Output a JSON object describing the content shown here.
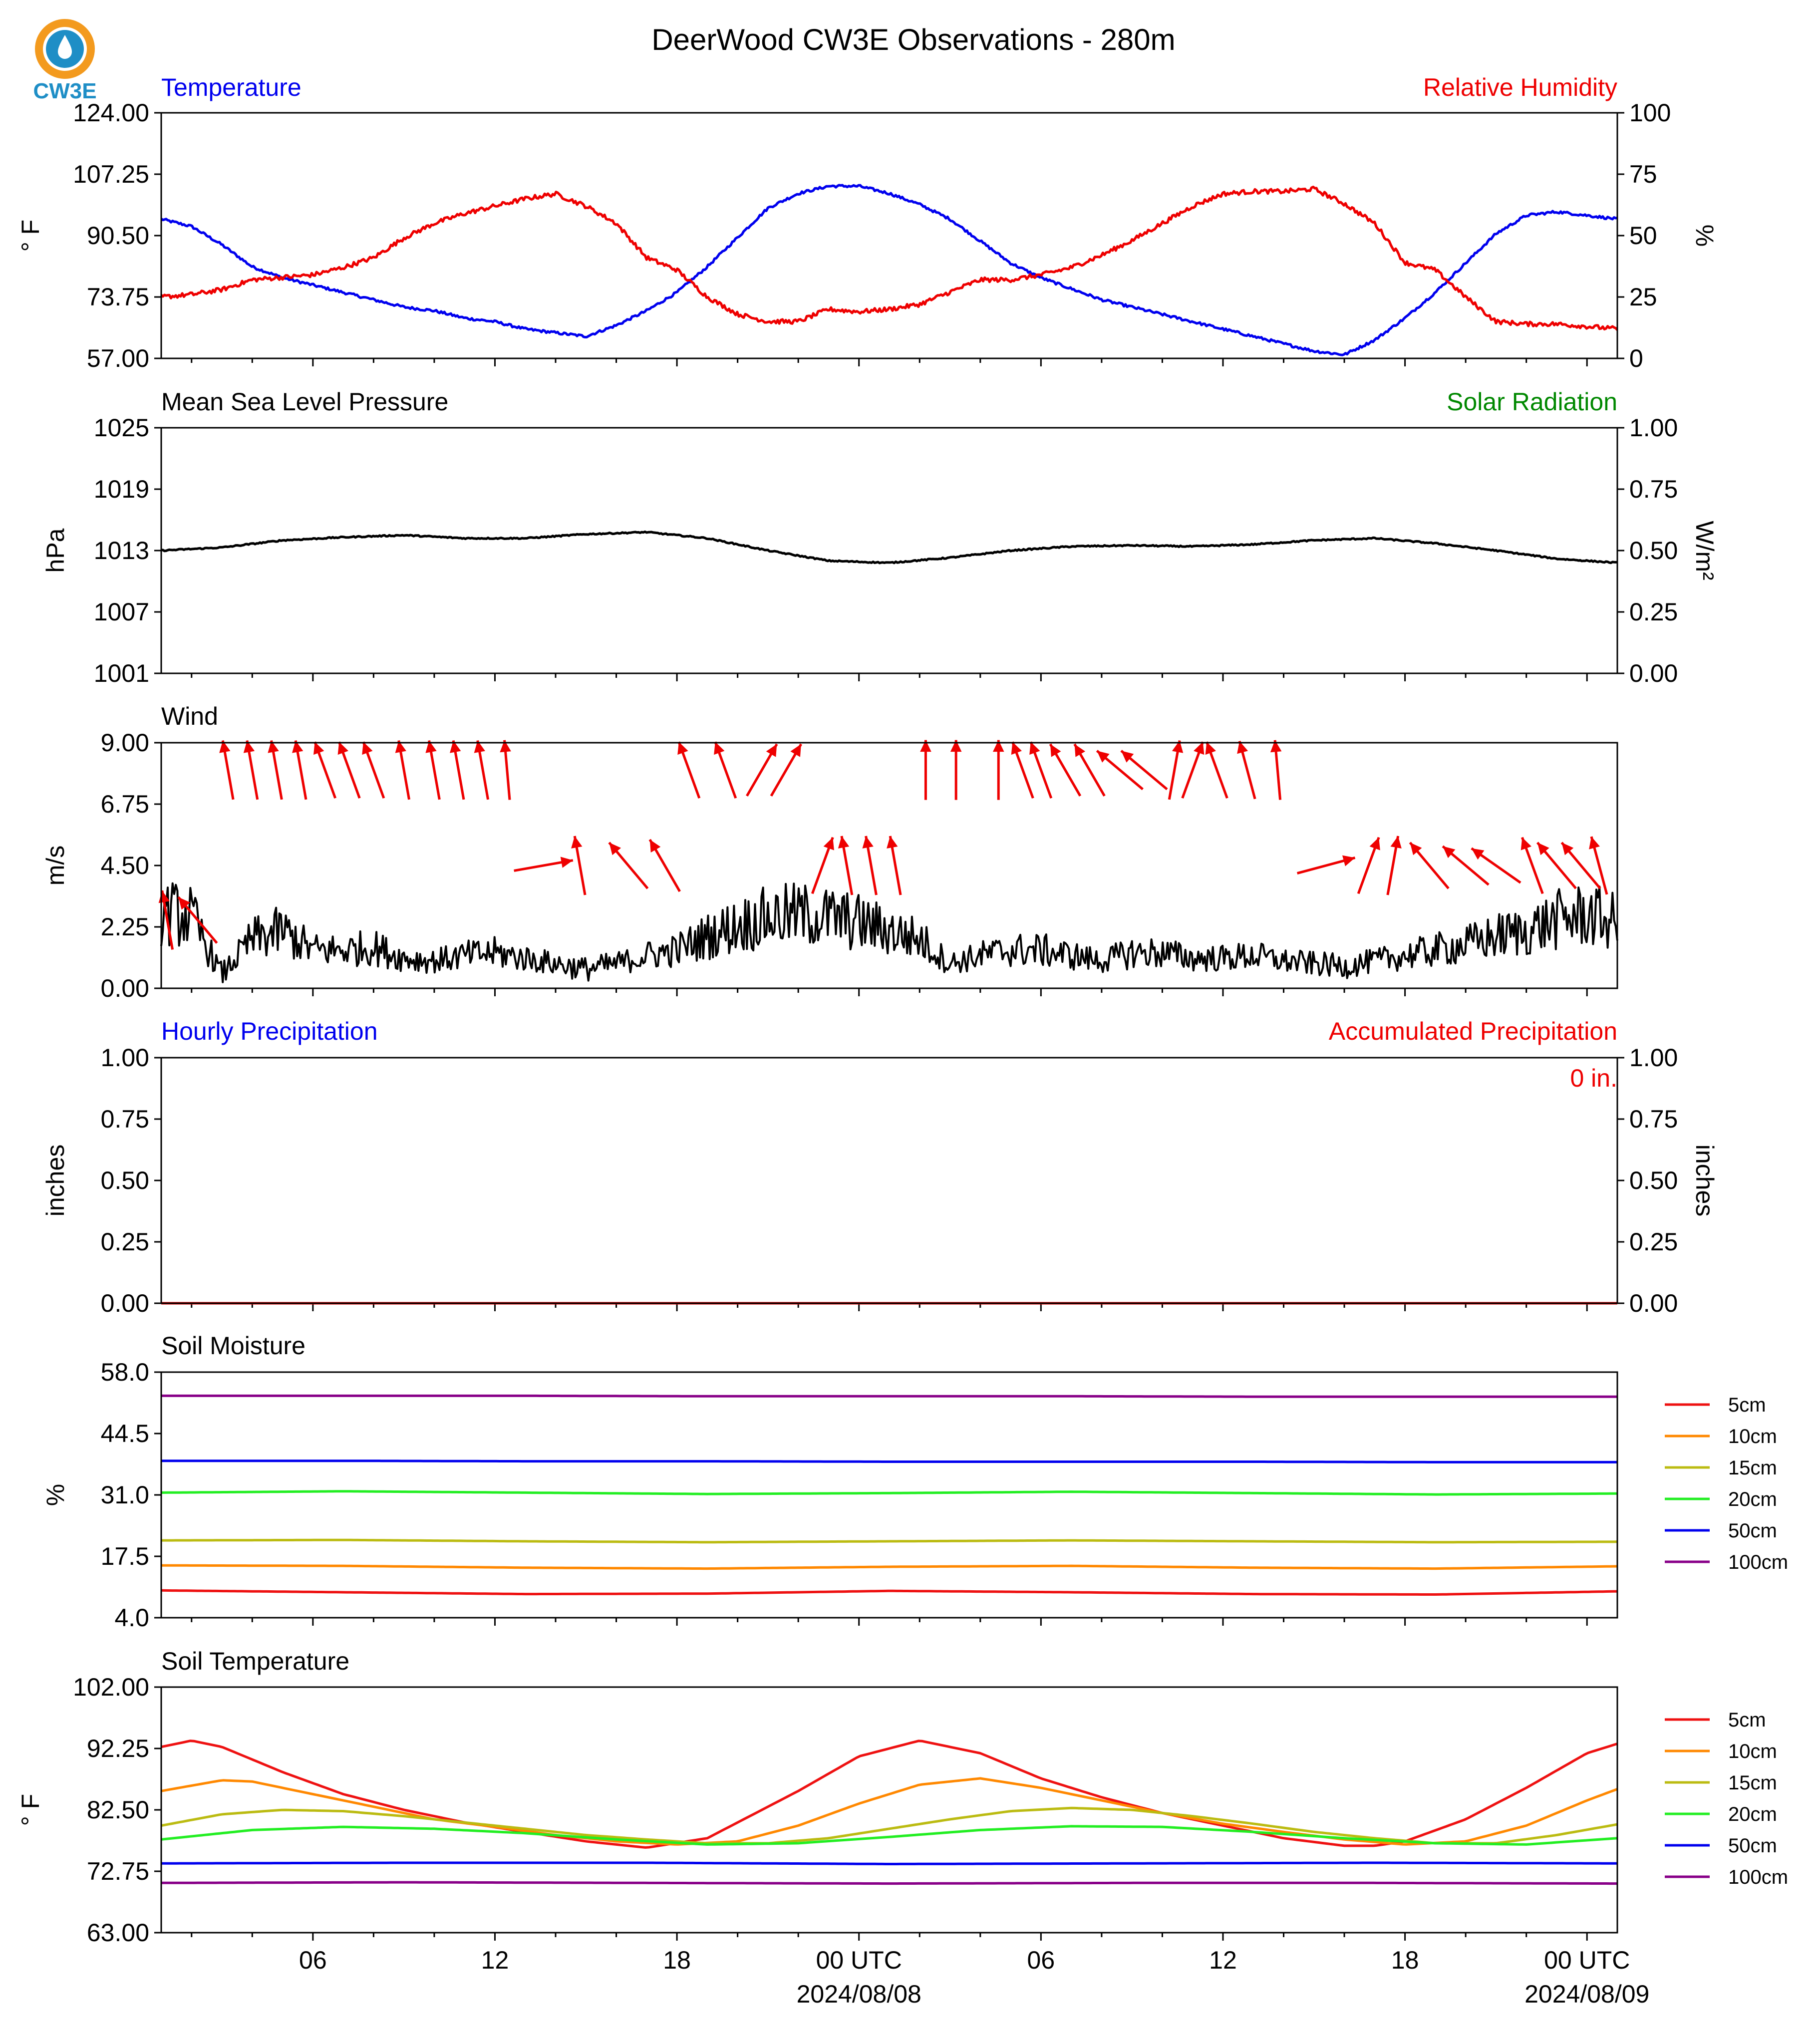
{
  "figure": {
    "title": "DeerWood CW3E Observations - 280m",
    "logo_text": "CW3E",
    "x_axis": {
      "tick_labels": [
        "06",
        "12",
        "18",
        "00 UTC",
        "06",
        "12",
        "18",
        "00 UTC"
      ],
      "tick_hours": [
        6,
        12,
        18,
        24,
        30,
        36,
        42,
        48
      ],
      "date_labels": [
        {
          "text": "2024/08/08",
          "hour": 24
        },
        {
          "text": "2024/08/09",
          "hour": 48
        }
      ],
      "range_hours": [
        1,
        49
      ]
    }
  },
  "colors": {
    "blue": "#0000ee",
    "red": "#ee0000",
    "green": "#008800",
    "black": "#000000",
    "logo_orange": "#f39a1e",
    "logo_blue": "#1e8ec6"
  },
  "chart_data": [
    {
      "id": "temp-rh",
      "type": "line",
      "title_left": "Temperature",
      "title_right": "Relative Humidity",
      "ylabel": "° F",
      "ylabel_right": "%",
      "ylim": [
        57,
        124
      ],
      "ylim_right": [
        0,
        100
      ],
      "yticks": [
        "57.00",
        "73.75",
        "90.50",
        "107.25",
        "124.00"
      ],
      "yticks_right": [
        "0",
        "25",
        "50",
        "75",
        "100"
      ],
      "series": [
        {
          "name": "Temperature",
          "axis": "left",
          "color": "#0000ee",
          "x": [
            1,
            2,
            3,
            4,
            5,
            6,
            7,
            8,
            9,
            10,
            11,
            12,
            13,
            14,
            15,
            16,
            17,
            18,
            19,
            20,
            21,
            22,
            23,
            24,
            25,
            26,
            27,
            28,
            29,
            30,
            31,
            32,
            33,
            34,
            35,
            36,
            37,
            38,
            39,
            40,
            41,
            42,
            43,
            44,
            45,
            46,
            47,
            48,
            49
          ],
          "values": [
            95,
            93,
            88,
            82,
            79,
            77,
            75,
            73,
            71,
            70,
            68,
            67,
            65,
            64,
            63,
            66,
            70,
            75,
            82,
            90,
            98,
            102,
            104,
            104,
            102,
            99,
            95,
            89,
            83,
            79,
            76,
            73,
            71,
            69,
            67,
            65,
            63,
            61,
            59,
            58,
            62,
            68,
            75,
            83,
            91,
            96,
            97,
            96,
            95
          ]
        },
        {
          "name": "Relative Humidity",
          "axis": "right",
          "color": "#ee0000",
          "x": [
            1,
            2,
            3,
            4,
            5,
            6,
            7,
            8,
            9,
            10,
            11,
            12,
            13,
            14,
            15,
            16,
            17,
            18,
            19,
            20,
            21,
            22,
            23,
            24,
            25,
            26,
            27,
            28,
            29,
            30,
            31,
            32,
            33,
            34,
            35,
            36,
            37,
            38,
            39,
            40,
            41,
            42,
            43,
            44,
            45,
            46,
            47,
            48,
            49
          ],
          "values": [
            25,
            26,
            28,
            32,
            33,
            34,
            37,
            41,
            49,
            55,
            59,
            62,
            65,
            67,
            62,
            55,
            41,
            36,
            25,
            18,
            15,
            15,
            20,
            19,
            20,
            22,
            27,
            32,
            32,
            34,
            37,
            42,
            48,
            55,
            62,
            67,
            68,
            68,
            69,
            63,
            55,
            39,
            36,
            25,
            15,
            14,
            14,
            13,
            12
          ]
        }
      ]
    },
    {
      "id": "pressure",
      "type": "line",
      "title_left": "Mean Sea Level Pressure",
      "title_right": "Solar Radiation",
      "ylabel": "hPa",
      "ylabel_right": "W/m²",
      "ylim": [
        1001,
        1025
      ],
      "ylim_right": [
        0,
        1
      ],
      "yticks": [
        "1001",
        "1007",
        "1013",
        "1019",
        "1025"
      ],
      "yticks_right": [
        "0.00",
        "0.25",
        "0.50",
        "0.75",
        "1.00"
      ],
      "series": [
        {
          "name": "Pressure",
          "axis": "left",
          "color": "#000000",
          "x": [
            1,
            3,
            5,
            7,
            9,
            11,
            13,
            15,
            17,
            19,
            21,
            23,
            25,
            27,
            29,
            31,
            33,
            35,
            37,
            39,
            41,
            43,
            45,
            47,
            49
          ],
          "values": [
            1013.0,
            1013.3,
            1014.0,
            1014.3,
            1014.5,
            1014.2,
            1014.2,
            1014.6,
            1014.8,
            1014.2,
            1013.0,
            1012.0,
            1011.8,
            1012.3,
            1013.0,
            1013.4,
            1013.5,
            1013.4,
            1013.6,
            1014.0,
            1014.2,
            1013.7,
            1013.0,
            1012.2,
            1011.8
          ]
        }
      ]
    },
    {
      "id": "wind",
      "type": "line",
      "title_left": "Wind",
      "ylabel": "m/s",
      "ylim": [
        0,
        9
      ],
      "yticks": [
        "0.00",
        "2.25",
        "4.50",
        "6.75",
        "9.00"
      ],
      "series": [
        {
          "name": "Wind Speed",
          "axis": "left",
          "color": "#000000",
          "x": [
            1,
            2,
            3,
            4,
            5,
            6,
            7,
            8,
            9,
            10,
            11,
            12,
            13,
            14,
            15,
            16,
            17,
            18,
            19,
            20,
            21,
            22,
            23,
            24,
            25,
            26,
            27,
            28,
            29,
            30,
            31,
            32,
            33,
            34,
            35,
            36,
            37,
            38,
            39,
            40,
            41,
            42,
            43,
            44,
            45,
            46,
            47,
            48,
            49
          ],
          "values": [
            2.8,
            2.6,
            0.5,
            1.8,
            2.1,
            1.4,
            1.4,
            1.5,
            1.1,
            1.0,
            1.2,
            1.3,
            1.1,
            0.9,
            0.7,
            0.9,
            1.2,
            1.4,
            1.9,
            2.3,
            2.6,
            2.7,
            2.6,
            2.4,
            2.1,
            1.8,
            0.9,
            1.2,
            1.4,
            1.4,
            1.2,
            1.0,
            1.3,
            1.3,
            1.1,
            1.1,
            1.2,
            1.0,
            0.9,
            0.8,
            1.0,
            1.2,
            1.4,
            1.6,
            1.9,
            2.1,
            2.5,
            2.7,
            2.4
          ]
        }
      ],
      "barbs": {
        "color": "#ee0000",
        "hours": [
          1.2,
          2.2,
          3.2,
          4.0,
          4.8,
          5.6,
          6.4,
          7.2,
          8.0,
          9.0,
          10.0,
          10.8,
          11.6,
          12.4,
          13.6,
          14.8,
          16.4,
          17.6,
          18.4,
          19.6,
          20.8,
          21.6,
          22.8,
          23.6,
          24.4,
          25.2,
          26.2,
          27.2,
          28.6,
          29.4,
          30.0,
          30.8,
          31.6,
          32.6,
          33.4,
          34.4,
          35.0,
          35.8,
          36.8,
          37.8,
          39.4,
          40.8,
          41.6,
          42.8,
          44.0,
          45.0,
          46.2,
          47.0,
          47.8,
          48.4
        ],
        "dir_deg": [
          170,
          140,
          170,
          170,
          170,
          170,
          160,
          160,
          160,
          170,
          170,
          170,
          170,
          175,
          260,
          170,
          140,
          150,
          160,
          160,
          210,
          210,
          200,
          170,
          170,
          170,
          180,
          180,
          180,
          160,
          160,
          150,
          150,
          130,
          130,
          190,
          200,
          160,
          165,
          175,
          255,
          200,
          190,
          140,
          130,
          125,
          160,
          140,
          140,
          165
        ],
        "speed": [
          2.5,
          2.5,
          8,
          8,
          8,
          8,
          8,
          8,
          8,
          8,
          8,
          8,
          8,
          8,
          4.5,
          4.5,
          4.5,
          4.5,
          8,
          8,
          8,
          8,
          4.5,
          4.5,
          4.5,
          4.5,
          8,
          8,
          8,
          8,
          8,
          8,
          8,
          8,
          8,
          8,
          8,
          8,
          8,
          8,
          4.5,
          4.5,
          4.5,
          4.5,
          4.5,
          4.5,
          4.5,
          4.5,
          4.5,
          4.5
        ]
      }
    },
    {
      "id": "precip",
      "type": "line",
      "title_left": "Hourly Precipitation",
      "title_right": "Accumulated Precipitation",
      "annotation": "0 in.",
      "ylabel": "inches",
      "ylabel_right": "inches",
      "ylim": [
        0,
        1
      ],
      "ylim_right": [
        0,
        1
      ],
      "yticks": [
        "0.00",
        "0.25",
        "0.50",
        "0.75",
        "1.00"
      ],
      "yticks_right": [
        "0.00",
        "0.25",
        "0.50",
        "0.75",
        "1.00"
      ],
      "series": [
        {
          "name": "Accumulated Precipitation",
          "axis": "right",
          "color": "#ee0000",
          "x": [
            1,
            49
          ],
          "values": [
            0,
            0
          ]
        }
      ]
    },
    {
      "id": "soil-moisture",
      "type": "line",
      "title_left": "Soil Moisture",
      "ylabel": "%",
      "ylim": [
        4,
        58
      ],
      "yticks": [
        "4.0",
        "17.5",
        "31.0",
        "44.5",
        "58.0"
      ],
      "legend": [
        "5cm",
        "10cm",
        "15cm",
        "20cm",
        "50cm",
        "100cm"
      ],
      "series": [
        {
          "name": "5cm",
          "color": "#ee1111",
          "x": [
            1,
            7,
            13,
            19,
            25,
            31,
            37,
            43,
            49
          ],
          "values": [
            10.0,
            9.6,
            9.2,
            9.3,
            9.9,
            9.6,
            9.2,
            9.1,
            9.8
          ]
        },
        {
          "name": "10cm",
          "color": "#ff8800",
          "x": [
            1,
            7,
            13,
            19,
            25,
            31,
            37,
            43,
            49
          ],
          "values": [
            15.5,
            15.4,
            15.0,
            14.8,
            15.2,
            15.4,
            15.0,
            14.8,
            15.3
          ]
        },
        {
          "name": "15cm",
          "color": "#bbbb11",
          "x": [
            1,
            7,
            13,
            19,
            25,
            31,
            37,
            43,
            49
          ],
          "values": [
            21.0,
            21.1,
            20.8,
            20.6,
            20.8,
            21.0,
            20.8,
            20.6,
            20.7
          ]
        },
        {
          "name": "20cm",
          "color": "#22ee22",
          "x": [
            1,
            7,
            13,
            19,
            25,
            31,
            37,
            43,
            49
          ],
          "values": [
            31.5,
            31.8,
            31.5,
            31.2,
            31.4,
            31.7,
            31.4,
            31.1,
            31.3
          ]
        },
        {
          "name": "50cm",
          "color": "#0000ee",
          "x": [
            1,
            7,
            13,
            19,
            25,
            31,
            37,
            43,
            49
          ],
          "values": [
            38.5,
            38.5,
            38.4,
            38.4,
            38.3,
            38.3,
            38.3,
            38.2,
            38.2
          ]
        },
        {
          "name": "100cm",
          "color": "#880088",
          "x": [
            1,
            7,
            13,
            19,
            25,
            31,
            37,
            43,
            49
          ],
          "values": [
            52.8,
            52.8,
            52.8,
            52.7,
            52.7,
            52.7,
            52.6,
            52.6,
            52.6
          ]
        }
      ]
    },
    {
      "id": "soil-temperature",
      "type": "line",
      "title_left": "Soil Temperature",
      "ylabel": "° F",
      "ylim": [
        63,
        102
      ],
      "yticks": [
        "63.00",
        "72.75",
        "82.50",
        "92.25",
        "102.00"
      ],
      "legend": [
        "5cm",
        "10cm",
        "15cm",
        "20cm",
        "50cm",
        "100cm"
      ],
      "series": [
        {
          "name": "5cm",
          "color": "#ee1111",
          "x": [
            1,
            2,
            3,
            5,
            7,
            9,
            11,
            13,
            15,
            17,
            19,
            21,
            22,
            24,
            26,
            28,
            30,
            32,
            34,
            36,
            38,
            40,
            41,
            42,
            44,
            46,
            48,
            49
          ],
          "values": [
            92.5,
            93.5,
            92.5,
            88.5,
            85.0,
            82.5,
            80.5,
            79.0,
            77.5,
            76.5,
            78.0,
            83.0,
            85.5,
            91.0,
            93.5,
            91.5,
            87.5,
            84.5,
            82.0,
            80.0,
            78.0,
            76.8,
            76.8,
            77.5,
            81.0,
            86.0,
            91.5,
            93.0
          ]
        },
        {
          "name": "10cm",
          "color": "#ff8800",
          "x": [
            1,
            3,
            4,
            6,
            8,
            10,
            12,
            14,
            16,
            18,
            20,
            22,
            24,
            26,
            28,
            30,
            32,
            34,
            36,
            38,
            40,
            42,
            44,
            46,
            48,
            49
          ],
          "values": [
            85.5,
            87.2,
            87.0,
            85.0,
            83.0,
            81.0,
            79.8,
            78.5,
            77.5,
            77.0,
            77.5,
            80.0,
            83.5,
            86.5,
            87.5,
            86.0,
            84.0,
            82.0,
            80.3,
            79.0,
            77.8,
            77.0,
            77.5,
            80.0,
            84.0,
            85.8
          ]
        },
        {
          "name": "15cm",
          "color": "#bbbb11",
          "x": [
            1,
            3,
            5,
            7,
            9,
            11,
            13,
            15,
            17,
            19,
            21,
            23,
            25,
            27,
            29,
            31,
            33,
            35,
            37,
            39,
            41,
            43,
            45,
            47,
            49
          ],
          "values": [
            80.0,
            81.8,
            82.5,
            82.3,
            81.5,
            80.5,
            79.5,
            78.5,
            77.8,
            77.2,
            77.2,
            78.0,
            79.5,
            81.0,
            82.3,
            82.8,
            82.5,
            81.5,
            80.3,
            79.0,
            78.0,
            77.2,
            77.2,
            78.5,
            80.2
          ]
        },
        {
          "name": "20cm",
          "color": "#22ee22",
          "x": [
            1,
            4,
            7,
            10,
            13,
            16,
            19,
            22,
            25,
            28,
            31,
            34,
            37,
            40,
            43,
            46,
            49
          ],
          "values": [
            77.8,
            79.3,
            79.8,
            79.5,
            78.8,
            77.8,
            77.0,
            77.2,
            78.2,
            79.3,
            79.9,
            79.8,
            79.0,
            78.0,
            77.2,
            77.0,
            78.0
          ]
        },
        {
          "name": "50cm",
          "color": "#0000ee",
          "x": [
            1,
            9,
            17,
            25,
            33,
            41,
            49
          ],
          "values": [
            74.0,
            74.1,
            74.1,
            73.9,
            74.0,
            74.1,
            74.0
          ]
        },
        {
          "name": "100cm",
          "color": "#880088",
          "x": [
            1,
            9,
            17,
            25,
            33,
            41,
            49
          ],
          "values": [
            70.9,
            71.0,
            70.9,
            70.8,
            70.9,
            70.9,
            70.8
          ]
        }
      ]
    }
  ]
}
